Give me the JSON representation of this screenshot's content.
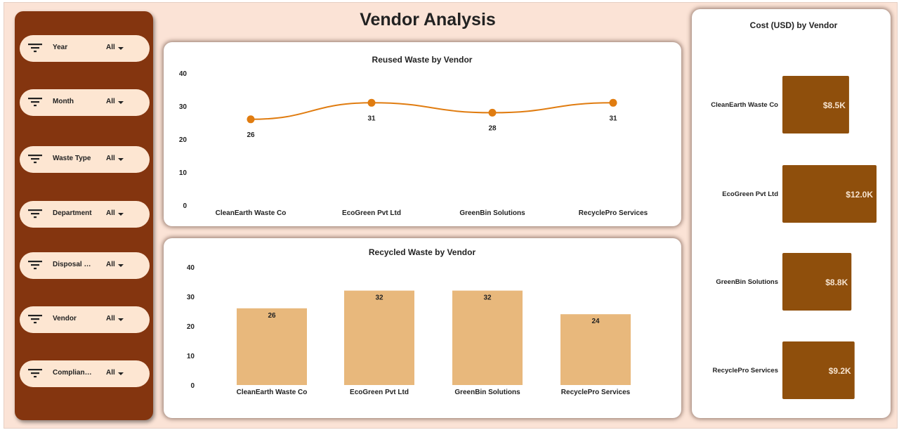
{
  "dashboard": {
    "title": "Vendor Analysis"
  },
  "filters": [
    {
      "label": "Year",
      "value": "All",
      "icon": "filter-icon"
    },
    {
      "label": "Month",
      "value": "All",
      "icon": "filter-icon"
    },
    {
      "label": "Waste Type",
      "value": "All",
      "icon": "filter-icon"
    },
    {
      "label": "Department",
      "value": "All",
      "icon": "filter-icon"
    },
    {
      "label": "Disposal M...",
      "value": "All",
      "icon": "filter-icon"
    },
    {
      "label": "Vendor",
      "value": "All",
      "icon": "filter-icon"
    },
    {
      "label": "Complianc...",
      "value": "All",
      "icon": "filter-icon"
    }
  ],
  "colors": {
    "sidebar": "#84350f",
    "pill": "#fde6d2",
    "background": "#fbe3d6",
    "line": "#e07c10",
    "bar": "#e8b87c",
    "cost_bar": "#8f4f0c"
  },
  "chart_data": [
    {
      "type": "line",
      "title": "Reused Waste by Vendor",
      "categories": [
        "CleanEarth Waste Co",
        "EcoGreen Pvt Ltd",
        "GreenBin Solutions",
        "RecyclePro Services"
      ],
      "values": [
        26,
        31,
        28,
        31
      ],
      "yticks": [
        "0",
        "10",
        "20",
        "30",
        "40"
      ],
      "ylim": [
        0,
        40
      ],
      "grid": false,
      "legend": "none"
    },
    {
      "type": "bar",
      "title": "Recycled Waste by Vendor",
      "categories": [
        "CleanEarth Waste Co",
        "EcoGreen Pvt Ltd",
        "GreenBin Solutions",
        "RecyclePro Services"
      ],
      "values": [
        26,
        32,
        32,
        24
      ],
      "yticks": [
        "0",
        "10",
        "20",
        "30",
        "40"
      ],
      "ylim": [
        0,
        40
      ],
      "grid": false,
      "legend": "none"
    },
    {
      "type": "bar",
      "orientation": "horizontal",
      "title": "Cost (USD) by Vendor",
      "categories": [
        "CleanEarth Waste Co",
        "EcoGreen Pvt Ltd",
        "GreenBin Solutions",
        "RecyclePro Services"
      ],
      "values": [
        8500,
        12000,
        8800,
        9200
      ],
      "labels": [
        "$8.5K",
        "$12.0K",
        "$8.8K",
        "$9.2K"
      ],
      "grid": false,
      "legend": "none"
    }
  ]
}
